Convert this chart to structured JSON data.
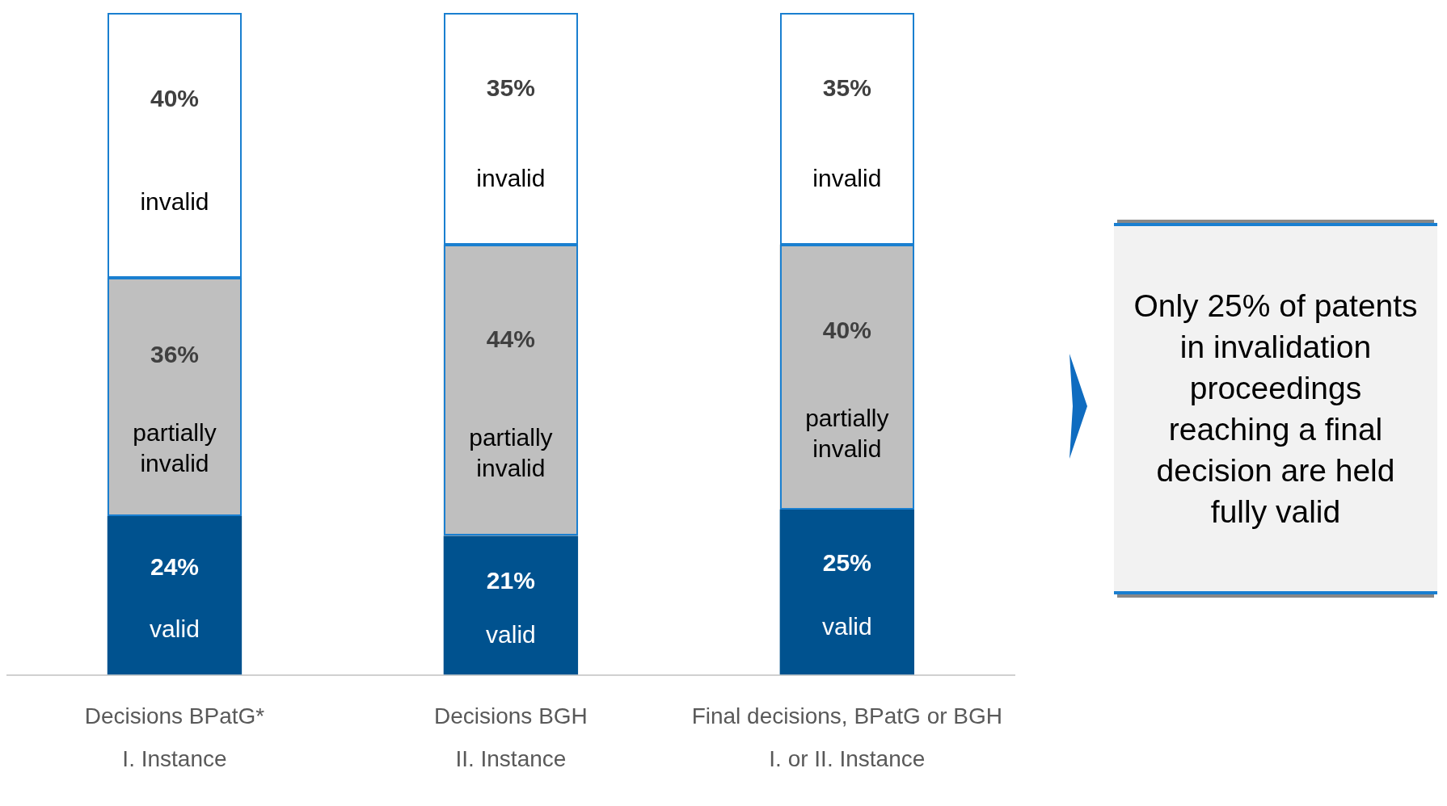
{
  "chart_data": {
    "type": "bar",
    "stacked": true,
    "categories": [
      "Decisions BPatG*\nI. Instance",
      "Decisions BGH\nII. Instance",
      "Final decisions, BPatG or BGH\nI. or II. Instance"
    ],
    "series": [
      {
        "name": "valid",
        "color": "#00528f",
        "values": [
          24,
          21,
          25
        ],
        "value_labels": [
          "24%",
          "21%",
          "25%"
        ]
      },
      {
        "name": "partially invalid",
        "color": "#bfbfbf",
        "values": [
          36,
          44,
          40
        ],
        "value_labels": [
          "36%",
          "44%",
          "40%"
        ]
      },
      {
        "name": "invalid",
        "color": "#ffffff",
        "values": [
          40,
          35,
          35
        ],
        "value_labels": [
          "40%",
          "35%",
          "35%"
        ]
      }
    ],
    "ylim": [
      0,
      100
    ],
    "legend": false,
    "grid": false,
    "annotations": [
      "Only 25% of patents in invalidation proceedings reaching a final decision are held fully valid"
    ]
  }
}
